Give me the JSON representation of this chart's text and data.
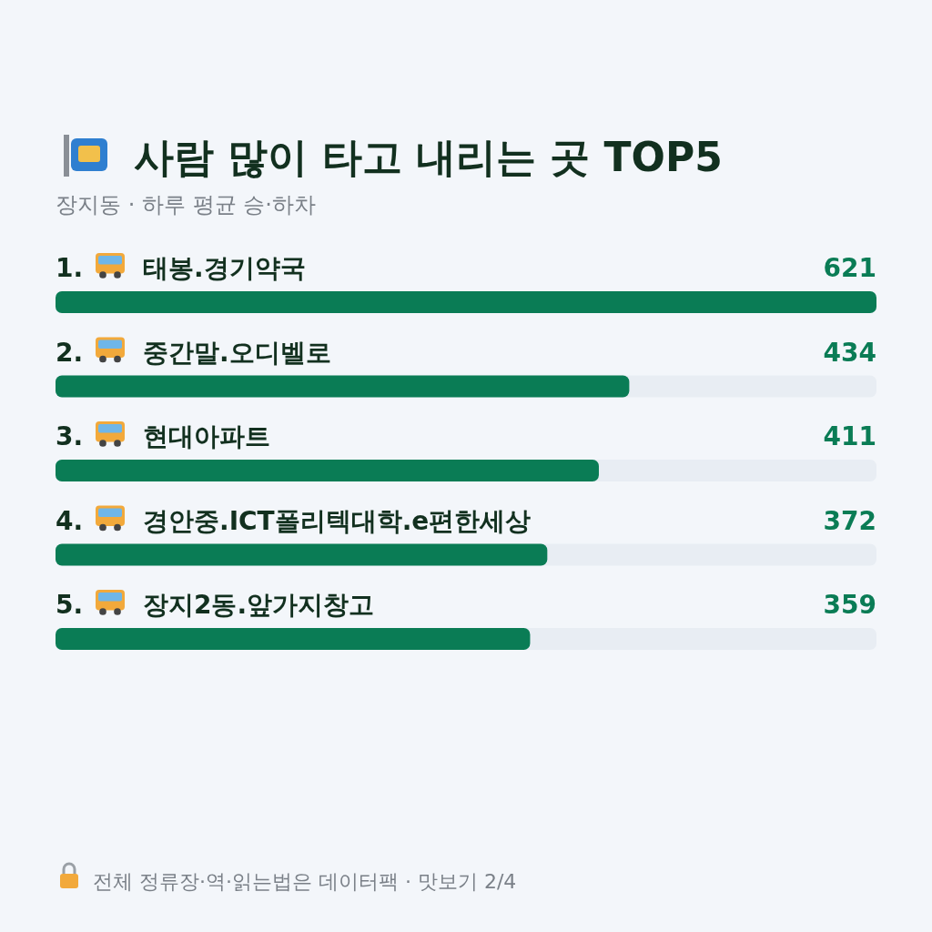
{
  "chart_data": {
    "type": "bar",
    "orientation": "horizontal",
    "title": "사람 많이 타고 내리는 곳 TOP5",
    "subtitle": "장지동 · 하루 평균 승·하차",
    "categories": [
      "1. 태봉.경기약국",
      "2. 중간말.오디벨로",
      "3. 현대아파트",
      "4. 경안중.ICT폴리텍대학.e편한세상",
      "5. 장지2동.앞가지창고"
    ],
    "values": [
      621,
      434,
      411,
      372,
      359
    ],
    "color": "#0a7c55",
    "data_labels": true,
    "annotations": [
      "전체 정류장·역·읽는법은 데이터팩 · 맛보기 2/4"
    ]
  }
}
